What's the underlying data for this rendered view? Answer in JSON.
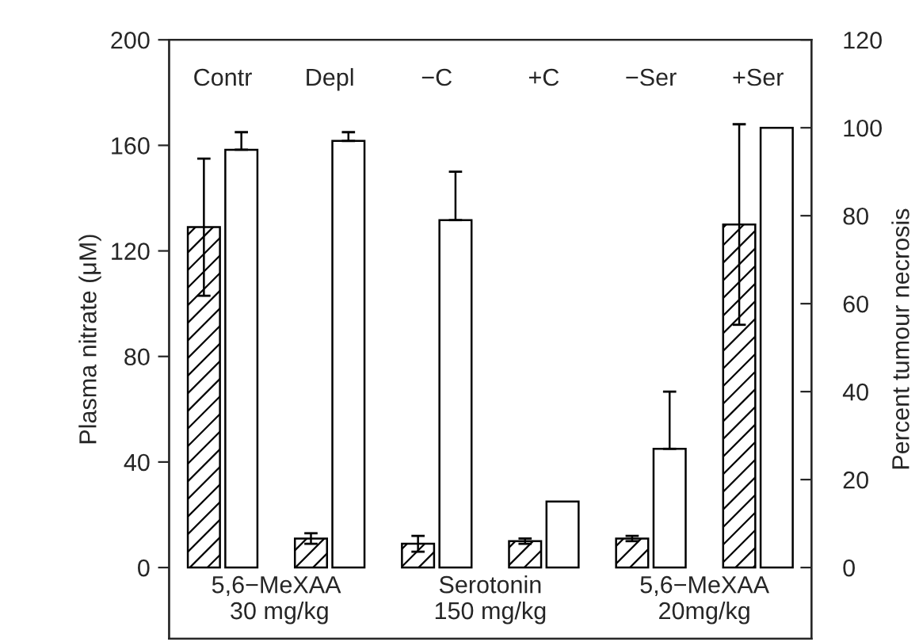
{
  "chart_data": {
    "type": "bar",
    "ylabel": "Plasma nitrate (μM)",
    "y2label": "Percent tumour necrosis",
    "categories": [
      "Contr",
      "Depl",
      "−C",
      "+C",
      "−Ser",
      "+Ser"
    ],
    "series": [
      {
        "color": "#000000",
        "values": [
          129,
          11,
          9,
          10,
          11,
          130
        ],
        "errors": [
          26,
          2,
          3,
          1,
          1,
          38
        ]
      },
      {
        "color": "#ffffff",
        "axis": "y2",
        "values": [
          95,
          97,
          79,
          15,
          27,
          100
        ],
        "errors": [
          [
            95,
            99
          ],
          [
            97,
            99
          ],
          [
            79,
            90
          ],
          null,
          [
            27,
            40
          ],
          null
        ]
      }
    ],
    "ylim": [
      -27,
      200
    ],
    "yticks": [
      0,
      40,
      80,
      120,
      160,
      200
    ],
    "y2lim": [
      -16.2,
      120
    ],
    "y2ticks": [
      0,
      20,
      40,
      60,
      80,
      100,
      120
    ],
    "annotations": [
      "5,6−MeXAA\n 30 mg/kg",
      "Serotonin\n150 mg/kg",
      "5,6−MeXAA\n20mg/kg"
    ],
    "grid": false,
    "legend": false
  }
}
